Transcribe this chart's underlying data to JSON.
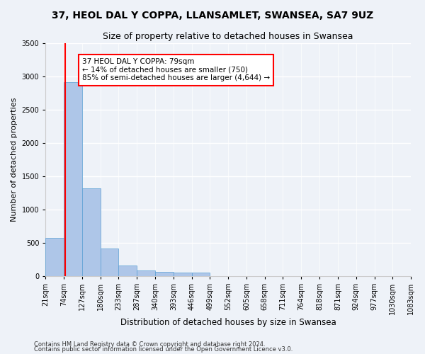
{
  "title1": "37, HEOL DAL Y COPPA, LLANSAMLET, SWANSEA, SA7 9UZ",
  "title2": "Size of property relative to detached houses in Swansea",
  "xlabel": "Distribution of detached houses by size in Swansea",
  "ylabel": "Number of detached properties",
  "footer1": "Contains HM Land Registry data © Crown copyright and database right 2024.",
  "footer2": "Contains public sector information licensed under the Open Government Licence v3.0.",
  "bin_labels": [
    "21sqm",
    "74sqm",
    "127sqm",
    "180sqm",
    "233sqm",
    "287sqm",
    "340sqm",
    "393sqm",
    "446sqm",
    "499sqm",
    "552sqm",
    "605sqm",
    "658sqm",
    "711sqm",
    "764sqm",
    "818sqm",
    "871sqm",
    "924sqm",
    "977sqm",
    "1030sqm",
    "1083sqm"
  ],
  "bar_values": [
    570,
    2910,
    1320,
    410,
    155,
    80,
    55,
    50,
    45,
    0,
    0,
    0,
    0,
    0,
    0,
    0,
    0,
    0,
    0,
    0
  ],
  "bar_color": "#aec6e8",
  "bar_edge_color": "#5a9fd4",
  "annotation_text": "37 HEOL DAL Y COPPA: 79sqm\n← 14% of detached houses are smaller (750)\n85% of semi-detached houses are larger (4,644) →",
  "annotation_box_color": "white",
  "annotation_box_edge_color": "red",
  "vline_x": 79,
  "vline_color": "red",
  "ylim": [
    0,
    3500
  ],
  "bin_edges": [
    21,
    74,
    127,
    180,
    233,
    287,
    340,
    393,
    446,
    499,
    552,
    605,
    658,
    711,
    764,
    818,
    871,
    924,
    977,
    1030,
    1083
  ],
  "background_color": "#eef2f8",
  "plot_bg_color": "#eef2f8",
  "grid_color": "white",
  "title1_fontsize": 10,
  "title2_fontsize": 9,
  "xlabel_fontsize": 8.5,
  "ylabel_fontsize": 8,
  "annotation_fontsize": 7.5,
  "tick_fontsize": 7
}
